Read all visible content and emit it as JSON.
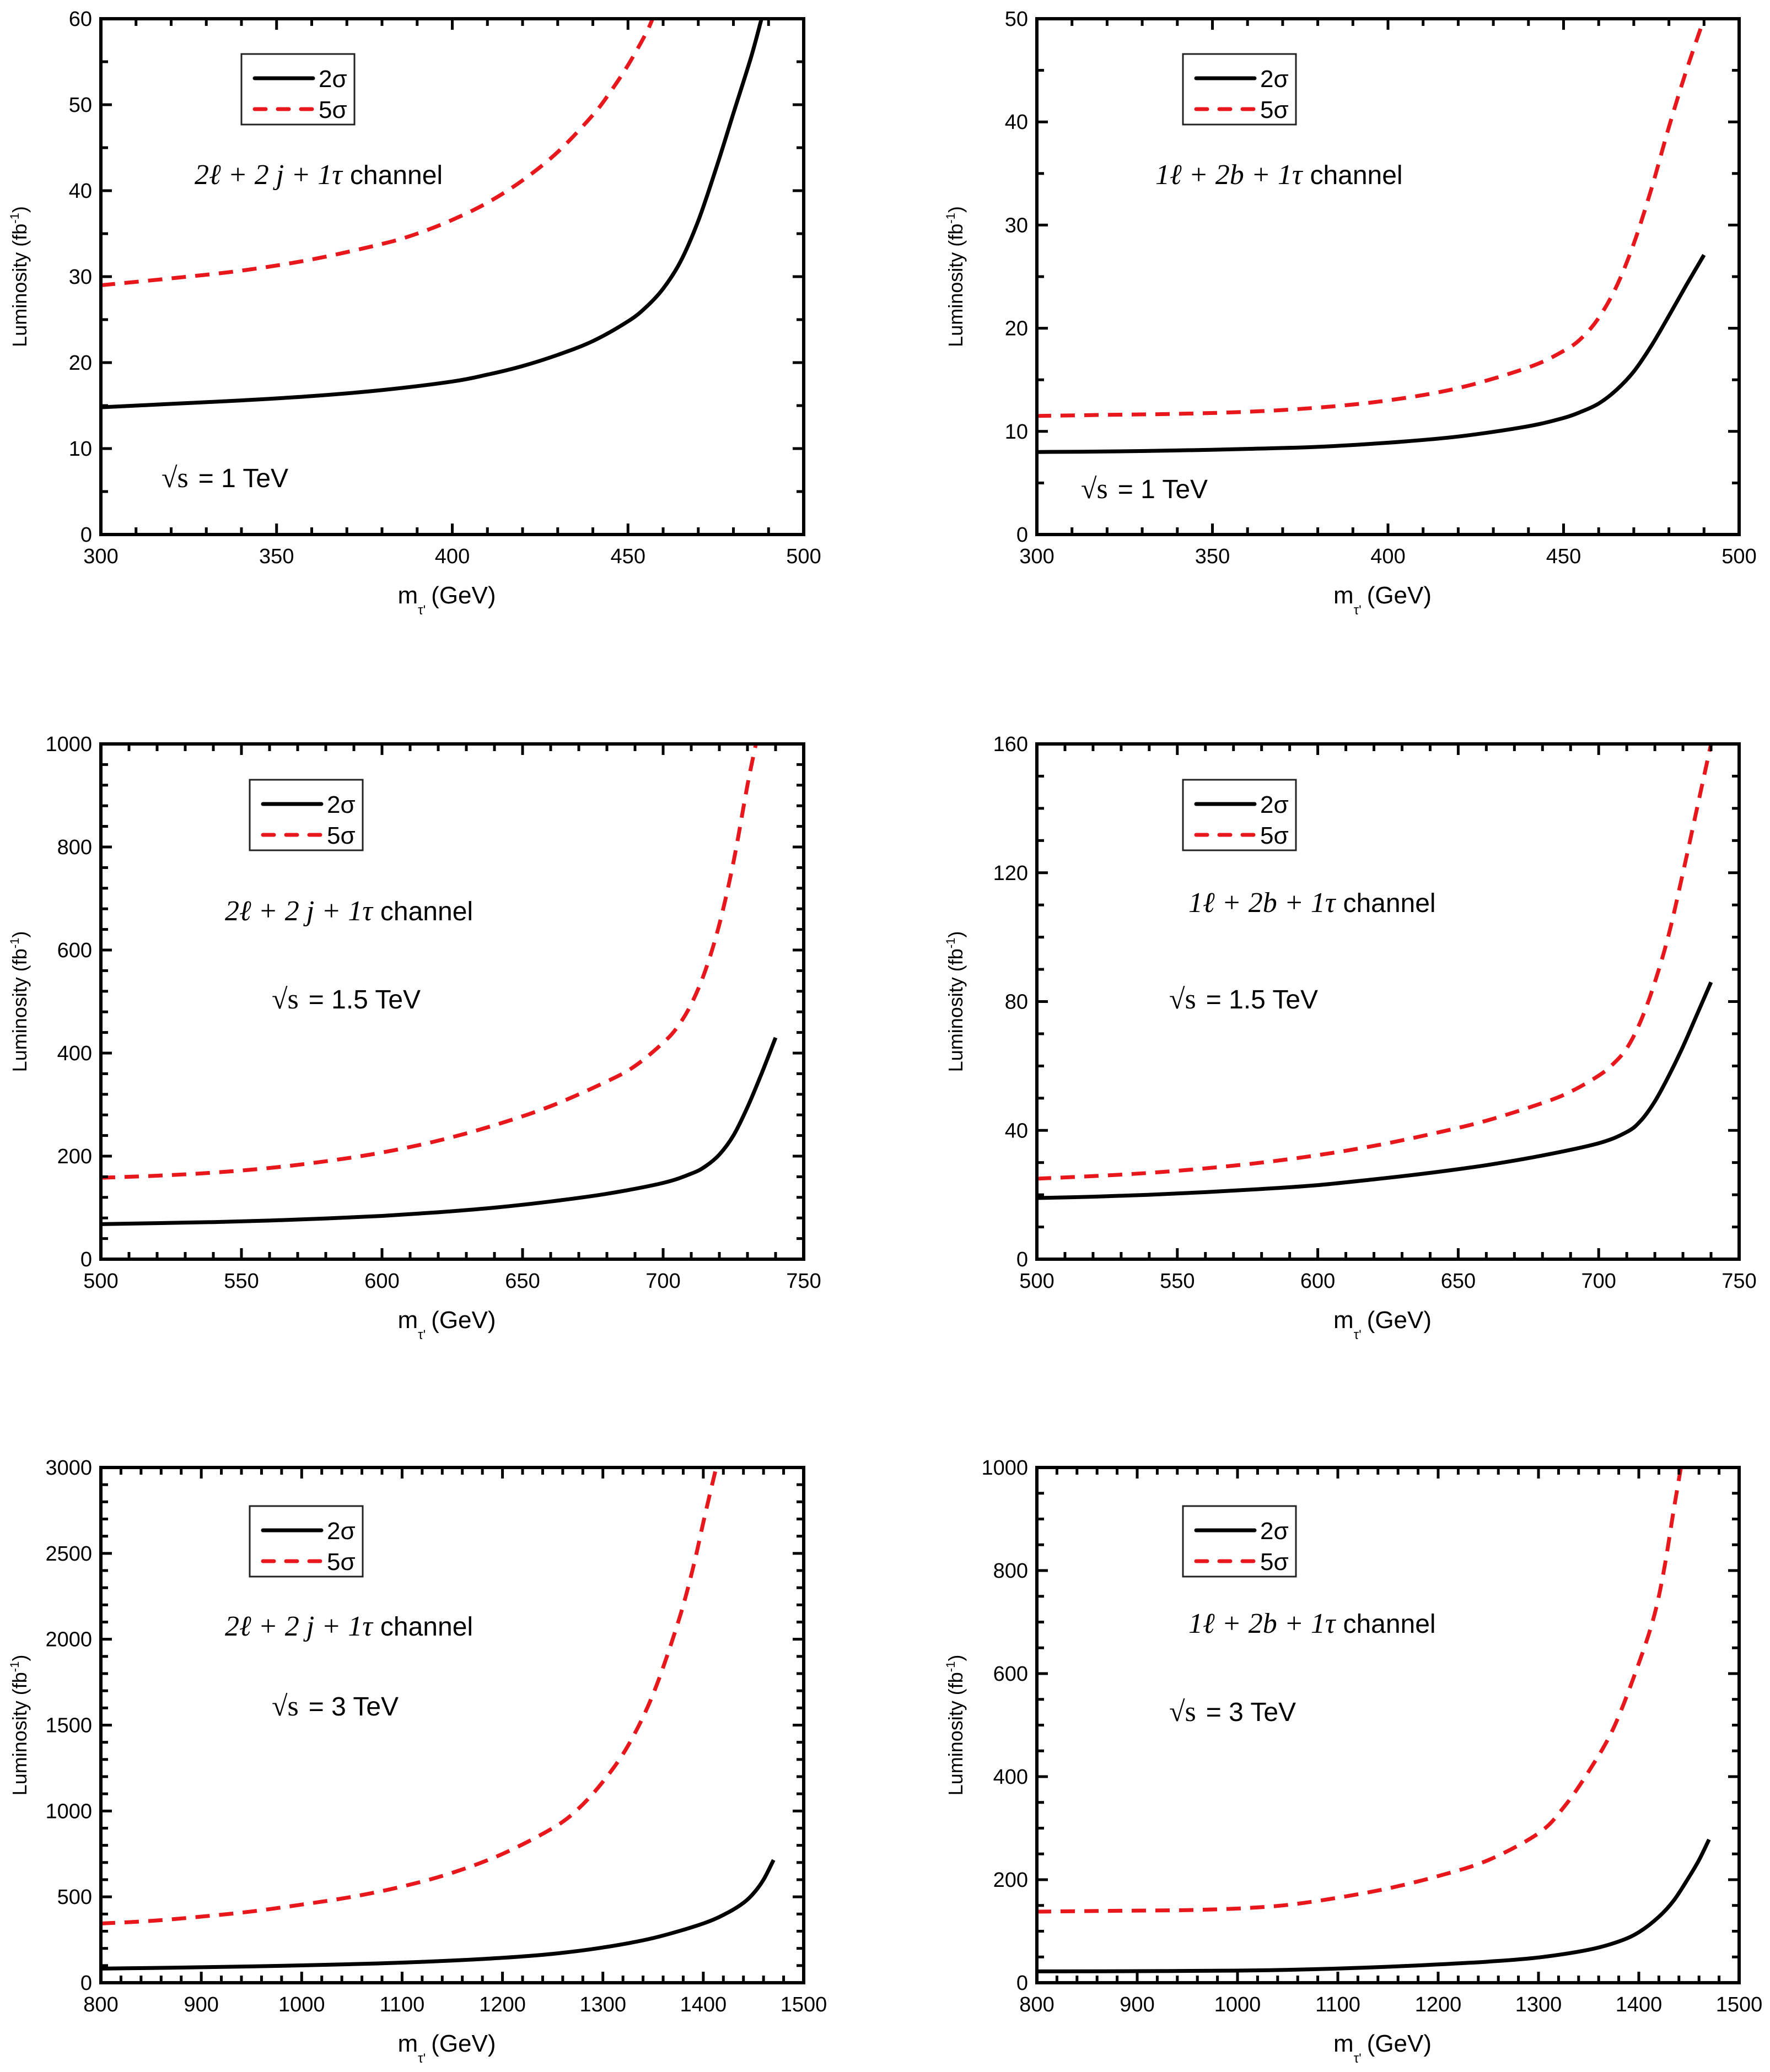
{
  "figure": {
    "panel_count": 6,
    "layout": "3 rows x 2 columns"
  },
  "chart_data": [
    {
      "id": "p1",
      "type": "line",
      "title": "",
      "xlabel": "m_τ' (GeV)",
      "xlabel_main": "m",
      "xlabel_sub": "τ",
      "xlabel_rest": "(GeV)",
      "ylabel": "Luminosity (fb⁻¹)",
      "ylabel_main": "Luminosity (fb",
      "ylabel_sup": "-1",
      "ylabel_end": ")",
      "xlim": [
        300,
        500
      ],
      "ylim": [
        0,
        60
      ],
      "xticks": [
        300,
        350,
        400,
        450,
        500
      ],
      "yticks": [
        0,
        10,
        20,
        30,
        40,
        50,
        60
      ],
      "x_minor_step": 10,
      "y_minor_step": 5,
      "grid": false,
      "legend": {
        "position": "top-left",
        "entries": [
          "2σ",
          "5σ"
        ]
      },
      "annotations": {
        "channel": {
          "lhs": "2ℓ + 2 j + 1τ",
          "rhs": "channel"
        },
        "energy": {
          "sqrt": "√s",
          "value": "= 1 TeV"
        }
      },
      "series": [
        {
          "name": "2σ",
          "color": "#000000",
          "style": "solid",
          "x": [
            300,
            320,
            340,
            360,
            380,
            400,
            410,
            420,
            430,
            440,
            450,
            455,
            460,
            465,
            470,
            475,
            480,
            485,
            488
          ],
          "y": [
            14.8,
            15.2,
            15.6,
            16.1,
            16.8,
            17.8,
            18.6,
            19.6,
            20.9,
            22.5,
            24.8,
            26.4,
            28.6,
            31.8,
            36.5,
            42.5,
            49.0,
            55.5,
            60
          ]
        },
        {
          "name": "5σ",
          "color": "#e8171c",
          "style": "dashed",
          "x": [
            300,
            320,
            340,
            360,
            380,
            390,
            400,
            410,
            420,
            430,
            440,
            445,
            450,
            455,
            457
          ],
          "y": [
            29.0,
            29.8,
            30.7,
            32.0,
            33.8,
            35.0,
            36.6,
            38.6,
            41.2,
            44.5,
            48.8,
            51.5,
            54.6,
            58.2,
            60
          ]
        }
      ]
    },
    {
      "id": "p2",
      "type": "line",
      "title": "",
      "xlabel": "m_τ' (GeV)",
      "xlabel_main": "m",
      "xlabel_sub": "τ",
      "xlabel_rest": "(GeV)",
      "ylabel": "Luminosity (fb⁻¹)",
      "ylabel_main": "Luminosity (fb",
      "ylabel_sup": "-1",
      "ylabel_end": ")",
      "xlim": [
        300,
        500
      ],
      "ylim": [
        0,
        50
      ],
      "xticks": [
        300,
        350,
        400,
        450,
        500
      ],
      "yticks": [
        0,
        10,
        20,
        30,
        40,
        50
      ],
      "x_minor_step": 10,
      "y_minor_step": 5,
      "grid": false,
      "legend": {
        "position": "top-left",
        "entries": [
          "2σ",
          "5σ"
        ]
      },
      "annotations": {
        "channel": {
          "lhs": "1ℓ + 2b + 1τ",
          "rhs": "channel"
        },
        "energy": {
          "sqrt": "√s",
          "value": "= 1 TeV"
        }
      },
      "series": [
        {
          "name": "2σ",
          "color": "#000000",
          "style": "solid",
          "x": [
            300,
            320,
            340,
            360,
            380,
            400,
            420,
            440,
            450,
            455,
            460,
            465,
            470,
            475,
            480,
            485,
            490
          ],
          "y": [
            8.0,
            8.05,
            8.15,
            8.3,
            8.5,
            8.9,
            9.5,
            10.5,
            11.3,
            11.9,
            12.7,
            14.0,
            15.8,
            18.3,
            21.2,
            24.2,
            27.1
          ]
        },
        {
          "name": "5σ",
          "color": "#e8171c",
          "style": "dashed",
          "x": [
            300,
            320,
            340,
            360,
            380,
            400,
            420,
            440,
            450,
            455,
            460,
            465,
            470,
            475,
            480,
            485,
            490
          ],
          "y": [
            11.5,
            11.6,
            11.7,
            11.9,
            12.3,
            13.0,
            14.2,
            16.2,
            17.8,
            19.0,
            21.0,
            24.0,
            28.2,
            33.5,
            39.5,
            45.0,
            50
          ]
        }
      ]
    },
    {
      "id": "p3",
      "type": "line",
      "title": "",
      "xlabel": "m_τ' (GeV)",
      "xlabel_main": "m",
      "xlabel_sub": "τ",
      "xlabel_rest": "(GeV)",
      "ylabel": "Luminosity (fb⁻¹)",
      "ylabel_main": "Luminosity (fb",
      "ylabel_sup": "-1",
      "ylabel_end": ")",
      "xlim": [
        500,
        750
      ],
      "ylim": [
        0,
        1000
      ],
      "xticks": [
        500,
        550,
        600,
        650,
        700,
        750
      ],
      "yticks": [
        0,
        200,
        400,
        600,
        800,
        1000
      ],
      "x_minor_step": 10,
      "y_minor_step": 40,
      "grid": false,
      "legend": {
        "position": "top-left",
        "entries": [
          "2σ",
          "5σ"
        ]
      },
      "annotations": {
        "channel": {
          "lhs": "2ℓ + 2 j + 1τ",
          "rhs": "channel"
        },
        "energy": {
          "sqrt": "√s",
          "value": "= 1.5 TeV"
        }
      },
      "series": [
        {
          "name": "2σ",
          "color": "#000000",
          "style": "solid",
          "x": [
            500,
            520,
            540,
            560,
            580,
            600,
            620,
            640,
            660,
            680,
            700,
            710,
            715,
            720,
            725,
            730,
            735,
            740
          ],
          "y": [
            68,
            70,
            72,
            75,
            79,
            84,
            91,
            100,
            112,
            127,
            148,
            166,
            180,
            203,
            240,
            295,
            360,
            430
          ]
        },
        {
          "name": "5σ",
          "color": "#e8171c",
          "style": "dashed",
          "x": [
            500,
            520,
            540,
            560,
            580,
            600,
            620,
            640,
            660,
            680,
            690,
            700,
            705,
            710,
            715,
            720,
            725,
            730,
            733
          ],
          "y": [
            158,
            162,
            168,
            177,
            190,
            207,
            230,
            260,
            297,
            345,
            375,
            420,
            450,
            495,
            560,
            650,
            770,
            920,
            1000
          ]
        }
      ]
    },
    {
      "id": "p4",
      "type": "line",
      "title": "",
      "xlabel": "m_τ' (GeV)",
      "xlabel_main": "m",
      "xlabel_sub": "τ",
      "xlabel_rest": "(GeV)",
      "ylabel": "Luminosity (fb⁻¹)",
      "ylabel_main": "Luminosity (fb",
      "ylabel_sup": "-1",
      "ylabel_end": ")",
      "xlim": [
        500,
        750
      ],
      "ylim": [
        0,
        160
      ],
      "xticks": [
        500,
        550,
        600,
        650,
        700,
        750
      ],
      "yticks": [
        0,
        40,
        80,
        120,
        160
      ],
      "x_minor_step": 10,
      "y_minor_step": 10,
      "grid": false,
      "legend": {
        "position": "top-left",
        "entries": [
          "2σ",
          "5σ"
        ]
      },
      "annotations": {
        "channel": {
          "lhs": "1ℓ + 2b + 1τ",
          "rhs": "channel"
        },
        "energy": {
          "sqrt": "√s",
          "value": "= 1.5 TeV"
        }
      },
      "series": [
        {
          "name": "2σ",
          "color": "#000000",
          "style": "solid",
          "x": [
            500,
            520,
            540,
            560,
            580,
            600,
            620,
            640,
            660,
            680,
            700,
            710,
            715,
            720,
            725,
            730,
            735,
            740
          ],
          "y": [
            19,
            19.4,
            20,
            20.8,
            21.8,
            23,
            24.8,
            26.8,
            29.2,
            32.2,
            36,
            39.5,
            43,
            49,
            57,
            66,
            76,
            86
          ]
        },
        {
          "name": "5σ",
          "color": "#e8171c",
          "style": "dashed",
          "x": [
            500,
            520,
            540,
            560,
            580,
            600,
            620,
            640,
            660,
            680,
            690,
            700,
            705,
            710,
            715,
            720,
            725,
            730,
            735,
            740
          ],
          "y": [
            25,
            25.8,
            26.8,
            28.2,
            30,
            32.3,
            35.2,
            38.8,
            43,
            48.5,
            52,
            57,
            60.5,
            65.5,
            74,
            86,
            101,
            120,
            140,
            160
          ]
        }
      ]
    },
    {
      "id": "p5",
      "type": "line",
      "title": "",
      "xlabel": "m_τ' (GeV)",
      "xlabel_main": "m",
      "xlabel_sub": "τ",
      "xlabel_rest": "(GeV)",
      "ylabel": "Luminosity (fb⁻¹)",
      "ylabel_main": "Luminosity (fb",
      "ylabel_sup": "-1",
      "ylabel_end": ")",
      "xlim": [
        800,
        1500
      ],
      "ylim": [
        0,
        3000
      ],
      "xticks": [
        800,
        900,
        1000,
        1100,
        1200,
        1300,
        1400,
        1500
      ],
      "yticks": [
        0,
        500,
        1000,
        1500,
        2000,
        2500,
        3000
      ],
      "x_minor_step": 20,
      "y_minor_step": 100,
      "grid": false,
      "legend": {
        "position": "top-left",
        "entries": [
          "2σ",
          "5σ"
        ]
      },
      "annotations": {
        "channel": {
          "lhs": "2ℓ + 2 j + 1τ",
          "rhs": "channel"
        },
        "energy": {
          "sqrt": "√s",
          "value": "= 3 TeV"
        }
      },
      "series": [
        {
          "name": "2σ",
          "color": "#000000",
          "style": "solid",
          "x": [
            800,
            850,
            900,
            950,
            1000,
            1050,
            1100,
            1150,
            1200,
            1250,
            1300,
            1350,
            1400,
            1425,
            1440,
            1450,
            1460,
            1470
          ],
          "y": [
            82,
            86,
            90,
            95,
            101,
            108,
            117,
            129,
            145,
            168,
            205,
            260,
            345,
            410,
            465,
            520,
            600,
            715
          ]
        },
        {
          "name": "5σ",
          "color": "#e8171c",
          "style": "dashed",
          "x": [
            800,
            850,
            900,
            950,
            1000,
            1050,
            1100,
            1150,
            1200,
            1250,
            1275,
            1300,
            1325,
            1350,
            1375,
            1390,
            1400,
            1410,
            1413
          ],
          "y": [
            345,
            360,
            385,
            415,
            455,
            500,
            560,
            640,
            750,
            900,
            1010,
            1170,
            1380,
            1680,
            2100,
            2420,
            2680,
            2930,
            3000
          ]
        }
      ]
    },
    {
      "id": "p6",
      "type": "line",
      "title": "",
      "xlabel": "m_τ' (GeV)",
      "xlabel_main": "m",
      "xlabel_sub": "τ",
      "xlabel_rest": "(GeV)",
      "ylabel": "Luminosity (fb⁻¹)",
      "ylabel_main": "Luminosity (fb",
      "ylabel_sup": "-1",
      "ylabel_end": ")",
      "xlim": [
        800,
        1500
      ],
      "ylim": [
        0,
        1000
      ],
      "xticks": [
        800,
        900,
        1000,
        1100,
        1200,
        1300,
        1400,
        1500
      ],
      "yticks": [
        0,
        200,
        400,
        600,
        800,
        1000
      ],
      "x_minor_step": 20,
      "y_minor_step": 50,
      "grid": false,
      "legend": {
        "position": "top-left",
        "entries": [
          "2σ",
          "5σ"
        ]
      },
      "annotations": {
        "channel": {
          "lhs": "1ℓ + 2b + 1τ",
          "rhs": "channel"
        },
        "energy": {
          "sqrt": "√s",
          "value": "= 3 TeV"
        }
      },
      "series": [
        {
          "name": "2σ",
          "color": "#000000",
          "style": "solid",
          "x": [
            800,
            900,
            1000,
            1050,
            1100,
            1150,
            1200,
            1250,
            1300,
            1350,
            1380,
            1400,
            1420,
            1435,
            1450,
            1460,
            1470
          ],
          "y": [
            22,
            22.5,
            23.5,
            25,
            27.5,
            31,
            35.5,
            41,
            49,
            64,
            80,
            98,
            128,
            160,
            205,
            238,
            278
          ]
        },
        {
          "name": "5σ",
          "color": "#e8171c",
          "style": "dashed",
          "x": [
            800,
            850,
            900,
            950,
            1000,
            1050,
            1100,
            1150,
            1200,
            1250,
            1300,
            1325,
            1350,
            1375,
            1400,
            1415,
            1425,
            1435,
            1442
          ],
          "y": [
            138,
            139,
            140,
            141,
            144,
            151,
            165,
            183,
            207,
            238,
            290,
            340,
            410,
            495,
            620,
            710,
            800,
            920,
            1000
          ]
        }
      ]
    }
  ]
}
